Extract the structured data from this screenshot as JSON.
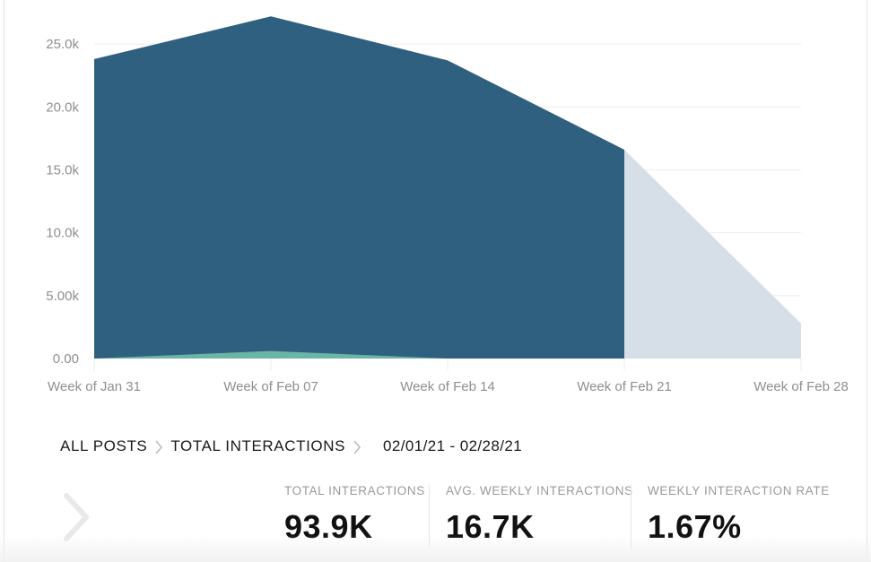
{
  "chart_data": {
    "type": "area",
    "x": [
      "Week of Jan 31",
      "Week of Feb 07",
      "Week of Feb 14",
      "Week of Feb 21",
      "Week of Feb 28"
    ],
    "y_ticks": [
      "0.00",
      "5.00k",
      "10.0k",
      "15.0k",
      "20.0k",
      "25.0k"
    ],
    "ylim": [
      0,
      27500
    ],
    "grid": true,
    "series": [
      {
        "values": [
          23800,
          27200,
          23700,
          16600,
          null
        ],
        "color": "#30607f"
      },
      {
        "values": [
          0,
          600,
          0,
          null,
          null
        ],
        "color": "#6bb5a4"
      },
      {
        "values": [
          null,
          null,
          null,
          16600,
          2800
        ],
        "color": "#d6dfe7",
        "projected": true
      }
    ]
  },
  "breadcrumb": {
    "items": [
      "ALL POSTS",
      "TOTAL INTERACTIONS"
    ],
    "date_range": "02/01/21 - 02/28/21"
  },
  "metrics": [
    {
      "label": "TOTAL INTERACTIONS",
      "value": "93.9K"
    },
    {
      "label": "AVG. WEEKLY INTERACTIONS",
      "value": "16.7K"
    },
    {
      "label": "WEEKLY INTERACTION RATE",
      "value": "1.67%"
    }
  ],
  "icons": {
    "prev": "chevron-right-icon",
    "separator": "chevron-right-icon"
  }
}
